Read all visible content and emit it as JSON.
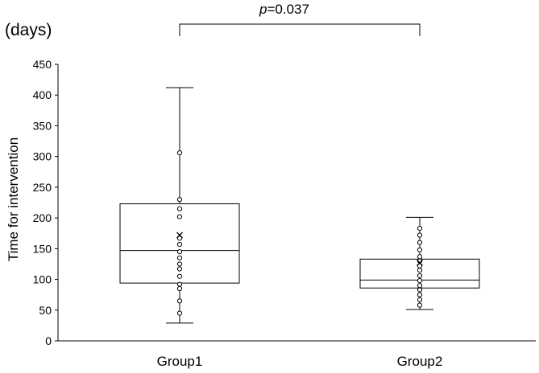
{
  "chart_data": {
    "type": "box",
    "ylabel": "Time for intervention",
    "unit_label": "(days)",
    "ylim": [
      0,
      450
    ],
    "yticks": [
      0,
      50,
      100,
      150,
      200,
      250,
      300,
      350,
      400,
      450
    ],
    "grid": false,
    "categories": [
      "Group1",
      "Group2"
    ],
    "boxes": [
      {
        "category": "Group1",
        "min": 29,
        "q1": 94,
        "median": 147,
        "q3": 223,
        "max": 412,
        "mean": 172,
        "points": [
          45,
          65,
          85,
          92,
          105,
          117,
          125,
          135,
          145,
          157,
          167,
          202,
          215,
          230,
          306
        ]
      },
      {
        "category": "Group2",
        "min": 51,
        "q1": 86,
        "median": 99,
        "q3": 133,
        "max": 201,
        "mean": 127,
        "points": [
          58,
          67,
          75,
          83,
          90,
          98,
          106,
          115,
          122,
          130,
          137,
          148,
          160,
          172,
          183
        ]
      }
    ],
    "annotation": {
      "p_symbol": "p",
      "p_rest": "=0.037"
    }
  }
}
